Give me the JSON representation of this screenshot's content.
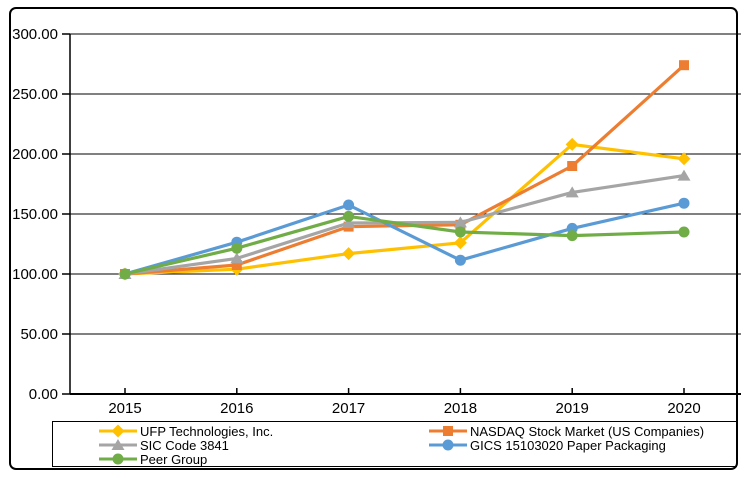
{
  "chart_data": {
    "type": "line",
    "title": "",
    "xlabel": "",
    "ylabel": "",
    "x_labels": [
      "2015",
      "2016",
      "2017",
      "2018",
      "2019",
      "2020"
    ],
    "y_ticks": [
      "0.00",
      "50.00",
      "100.00",
      "150.00",
      "200.00",
      "250.00",
      "300.00"
    ],
    "ylim": [
      0,
      300
    ],
    "grid": true,
    "legend_position": "bottom-box",
    "series": [
      {
        "name": "UFP Technologies, Inc.",
        "color": "#FFC000",
        "marker": "diamond",
        "values": [
          100,
          104.0,
          117.0,
          126.0,
          208.0,
          196.0
        ]
      },
      {
        "name": "NASDAQ Stock Market (US Companies)",
        "color": "#ED7D31",
        "marker": "square",
        "values": [
          100,
          107.5,
          139.5,
          141.0,
          190.0,
          274.0
        ]
      },
      {
        "name": "SIC Code 3841",
        "color": "#A5A5A5",
        "marker": "triangle",
        "values": [
          100,
          113.0,
          142.5,
          143.0,
          168.0,
          182.0
        ]
      },
      {
        "name": "GICS 15103020 Paper Packaging",
        "color": "#5B9BD5",
        "marker": "circle",
        "values": [
          100,
          126.5,
          157.5,
          111.5,
          138.0,
          159.0
        ]
      },
      {
        "name": "Peer Group",
        "color": "#70AD47",
        "marker": "circle",
        "values": [
          100,
          121.5,
          148.0,
          135.0,
          132.0,
          135.0
        ]
      }
    ]
  }
}
